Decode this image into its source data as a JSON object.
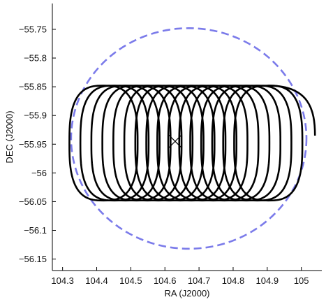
{
  "chart_data": {
    "type": "line",
    "title": "",
    "xlabel": "RA (J2000)",
    "ylabel": "DEC (J2000)",
    "xlim": [
      104.27,
      105.06
    ],
    "ylim": [
      -56.17,
      -55.705
    ],
    "xticks": [
      104.3,
      104.4,
      104.5,
      104.6,
      104.7,
      104.8,
      104.9,
      105.0
    ],
    "xtick_labels": [
      "104.3",
      "104.4",
      "104.5",
      "104.6",
      "104.7",
      "104.8",
      "104.9",
      "105"
    ],
    "yticks": [
      -55.75,
      -55.8,
      -55.85,
      -55.9,
      -55.95,
      -56.0,
      -56.05,
      -56.1,
      -56.15
    ],
    "ytick_labels": [
      "−55.75",
      "−55.8",
      "−55.85",
      "−55.9",
      "−55.95",
      "−56",
      "−56.05",
      "−56.1",
      "−56.15"
    ],
    "grid": false,
    "scan": {
      "loops": 16,
      "start_ra": 104.32,
      "step_ra": 0.0322,
      "half_width_ra": 0.1,
      "dec_center": -55.948,
      "dec_half_height": 0.1,
      "tail_end": [
        105.04,
        -55.935
      ],
      "color": "#000000"
    },
    "field_circle": {
      "center": [
        104.67,
        -55.94
      ],
      "radius_ra": 0.345,
      "radius_dec": 0.192,
      "color": "#7b7bea",
      "style": "dashed"
    },
    "center_marker": {
      "position": [
        104.63,
        -55.945
      ],
      "symbol": "x",
      "color": "#000000"
    }
  }
}
